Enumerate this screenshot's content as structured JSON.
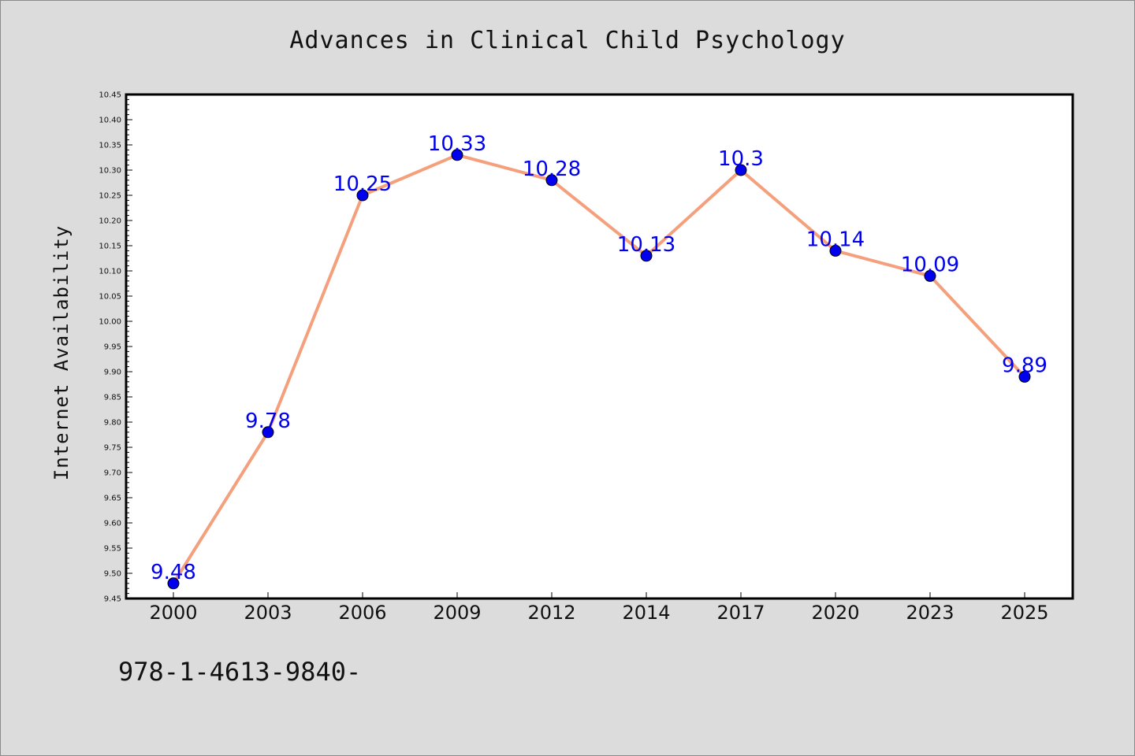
{
  "chart_data": {
    "type": "line",
    "title": "Advances in Clinical Child Psychology",
    "ylabel": "Internet Availability",
    "xlabel": "",
    "categories": [
      "2000",
      "2003",
      "2006",
      "2009",
      "2012",
      "2014",
      "2017",
      "2020",
      "2023",
      "2025"
    ],
    "series": [
      {
        "values": [
          9.48,
          9.78,
          10.25,
          10.33,
          10.28,
          10.13,
          10.3,
          10.14,
          10.09,
          9.89
        ],
        "labels": [
          "9.48",
          "9.78",
          "10.25",
          "10.33",
          "10.28",
          "10.13",
          "10.3",
          "10.14",
          "10.09",
          "9.89"
        ]
      }
    ],
    "ylim": [
      9.45,
      10.45
    ],
    "yticks": [
      "9.45",
      "9.50",
      "9.55",
      "9.60",
      "9.65",
      "9.70",
      "9.75",
      "9.80",
      "9.85",
      "9.90",
      "9.95",
      "10.00",
      "10.05",
      "10.10",
      "10.15",
      "10.20",
      "10.25",
      "10.30",
      "10.35",
      "10.40",
      "10.45"
    ],
    "grid": false,
    "legend": "none",
    "colors": {
      "line": "#f4a07c",
      "marker": "#0000ee",
      "data_label": "#0000ee",
      "plot_bg": "#ffffff",
      "page_bg": "#dcdcdc"
    }
  },
  "footer": {
    "code": "978-1-4613-9840-"
  }
}
